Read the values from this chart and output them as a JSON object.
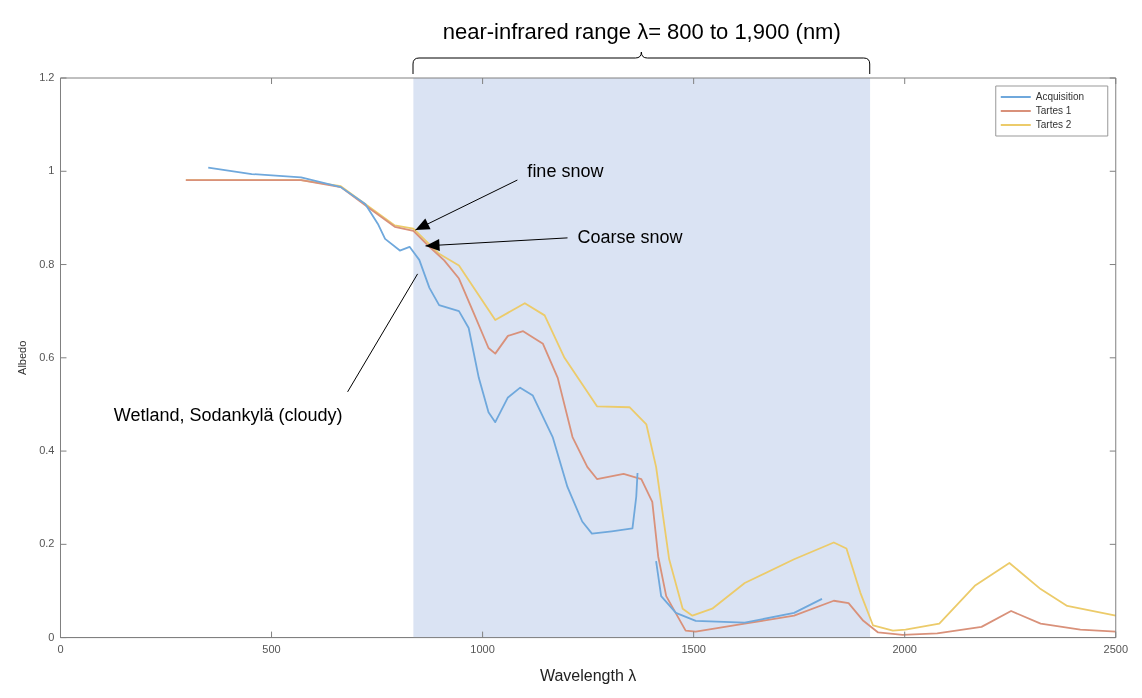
{
  "chart_data": {
    "type": "line",
    "xlabel": "Wavelength λ",
    "ylabel": "Albedo",
    "xlim": [
      0,
      2500
    ],
    "ylim": [
      0,
      1.2
    ],
    "xticks": [
      0,
      500,
      1000,
      1500,
      2000,
      2500
    ],
    "yticks": [
      0,
      0.2,
      0.4,
      0.6,
      0.8,
      1,
      1.2
    ],
    "grid": false,
    "legend": "top right",
    "marker": "none",
    "line_style": "solid",
    "series": [
      {
        "name": "Acquisition",
        "color": "#6fa8dc",
        "x": [
          350,
          453,
          570,
          664,
          722,
          752,
          769,
          804,
          827,
          850,
          874,
          897,
          944,
          967,
          991,
          1014,
          1030,
          1060,
          1089,
          1119,
          1166,
          1201,
          1236,
          1259,
          1306,
          1355,
          1364,
          1367,
          null,
          1411,
          1423,
          1458,
          1505,
          1621,
          1738,
          1804
        ],
        "values": [
          1.008,
          0.994,
          0.987,
          0.966,
          0.93,
          0.887,
          0.855,
          0.83,
          0.838,
          0.81,
          0.75,
          0.713,
          0.7,
          0.664,
          0.557,
          0.483,
          0.462,
          0.515,
          0.536,
          0.519,
          0.43,
          0.323,
          0.249,
          0.223,
          0.228,
          0.234,
          0.302,
          0.353,
          null,
          0.164,
          0.089,
          0.053,
          0.036,
          0.032,
          0.053,
          0.083
        ]
      },
      {
        "name": "Tartes 1",
        "color": "#d9917a",
        "x": [
          297,
          570,
          664,
          734,
          792,
          836,
          874,
          909,
          944,
          979,
          1014,
          1030,
          1060,
          1096,
          1143,
          1178,
          1213,
          1248,
          1271,
          1334,
          1376,
          1402,
          1416,
          1435,
          1481,
          1505,
          1621,
          1738,
          1832,
          1867,
          1902,
          1937,
          1995,
          2077,
          2182,
          2252,
          2322,
          2416,
          2500
        ],
        "values": [
          0.981,
          0.981,
          0.966,
          0.919,
          0.881,
          0.872,
          0.838,
          0.809,
          0.77,
          0.696,
          0.621,
          0.609,
          0.647,
          0.657,
          0.63,
          0.557,
          0.43,
          0.366,
          0.34,
          0.351,
          0.34,
          0.291,
          0.174,
          0.089,
          0.015,
          0.013,
          0.03,
          0.047,
          0.079,
          0.074,
          0.036,
          0.011,
          0.006,
          0.009,
          0.023,
          0.057,
          0.03,
          0.017,
          0.013
        ]
      },
      {
        "name": "Tartes 2",
        "color": "#eccb6a",
        "x": [
          297,
          570,
          664,
          734,
          792,
          836,
          897,
          944,
          1030,
          1100,
          1147,
          1194,
          1271,
          1348,
          1388,
          1411,
          1442,
          1474,
          1497,
          1544,
          1621,
          1738,
          1832,
          1862,
          1895,
          1925,
          1972,
          2002,
          2082,
          2166,
          2248,
          2322,
          2385,
          2500
        ],
        "values": [
          0.981,
          0.981,
          0.968,
          0.922,
          0.884,
          0.877,
          0.823,
          0.798,
          0.681,
          0.717,
          0.691,
          0.6,
          0.496,
          0.494,
          0.457,
          0.366,
          0.168,
          0.062,
          0.047,
          0.062,
          0.117,
          0.168,
          0.204,
          0.191,
          0.096,
          0.026,
          0.015,
          0.017,
          0.03,
          0.111,
          0.16,
          0.104,
          0.068,
          0.047
        ]
      }
    ],
    "bands": [
      {
        "axis": "x",
        "from": 836,
        "to": 1918,
        "color": "#dae3f3",
        "label": "near-infrared range λ= 800 to 1,900 (nm)"
      }
    ],
    "annotations": [
      {
        "text": "fine snow",
        "x": 836,
        "y": 0.874
      },
      {
        "text": "Coarse snow",
        "x": 860,
        "y": 0.84
      },
      {
        "text": "Wetland, Sodankylä (cloudy)",
        "x": 846,
        "y": 0.78
      }
    ]
  }
}
